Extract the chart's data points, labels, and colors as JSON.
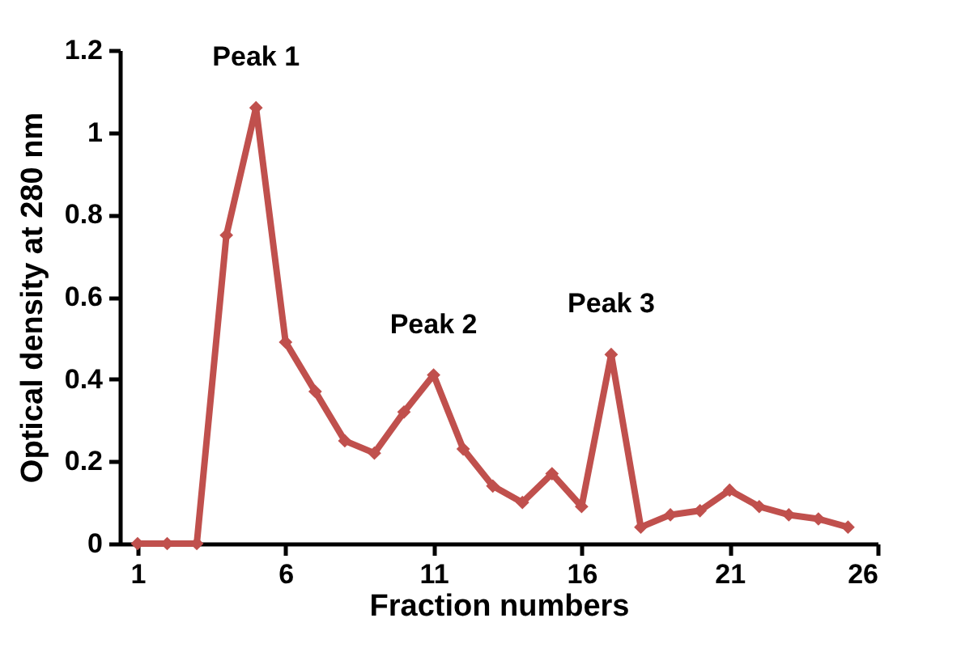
{
  "chart_data": {
    "type": "line",
    "xlabel": "Fraction numbers",
    "ylabel": "Optical density at 280 nm",
    "x": [
      1,
      2,
      3,
      4,
      5,
      6,
      7,
      8,
      9,
      10,
      11,
      12,
      13,
      14,
      15,
      16,
      17,
      18,
      19,
      20,
      21,
      22,
      23,
      24,
      25
    ],
    "series": [
      {
        "color": "#c0504d",
        "values": [
          0,
          0,
          0,
          0.75,
          1.06,
          0.49,
          0.37,
          0.25,
          0.22,
          0.32,
          0.41,
          0.23,
          0.14,
          0.1,
          0.17,
          0.09,
          0.46,
          0.04,
          0.07,
          0.08,
          0.13,
          0.09,
          0.07,
          0.06,
          0.04
        ]
      }
    ],
    "xlim": [
      0.4,
      26
    ],
    "xticks": [
      1,
      6,
      11,
      16,
      21,
      26
    ],
    "ylim": [
      0,
      1.2
    ],
    "yticks": [
      0,
      0.2,
      0.4,
      0.6,
      0.8,
      1,
      1.2
    ],
    "marker": "diamond",
    "line_style": "solid",
    "grid": false,
    "legend": false,
    "annotations": [
      {
        "text": "Peak 1",
        "x": 5,
        "y": 1.06
      },
      {
        "text": "Peak 2",
        "x": 11,
        "y": 0.41
      },
      {
        "text": "Peak 3",
        "x": 17,
        "y": 0.46
      }
    ]
  }
}
